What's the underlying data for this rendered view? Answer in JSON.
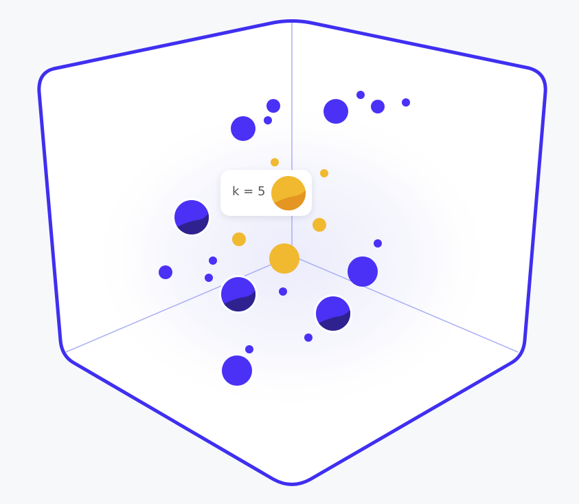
{
  "colors": {
    "cube_outline": "#3f2ff0",
    "axis_line": "#a9aef5",
    "cube_fill": "#ffffff",
    "point_color": "#4a31f5",
    "point_shadow": "#2f228f",
    "query_color": "#f0b930",
    "query_shadow": "#e49522",
    "background": "#f7f8fa"
  },
  "tooltip": {
    "label": "k = 5"
  }
}
